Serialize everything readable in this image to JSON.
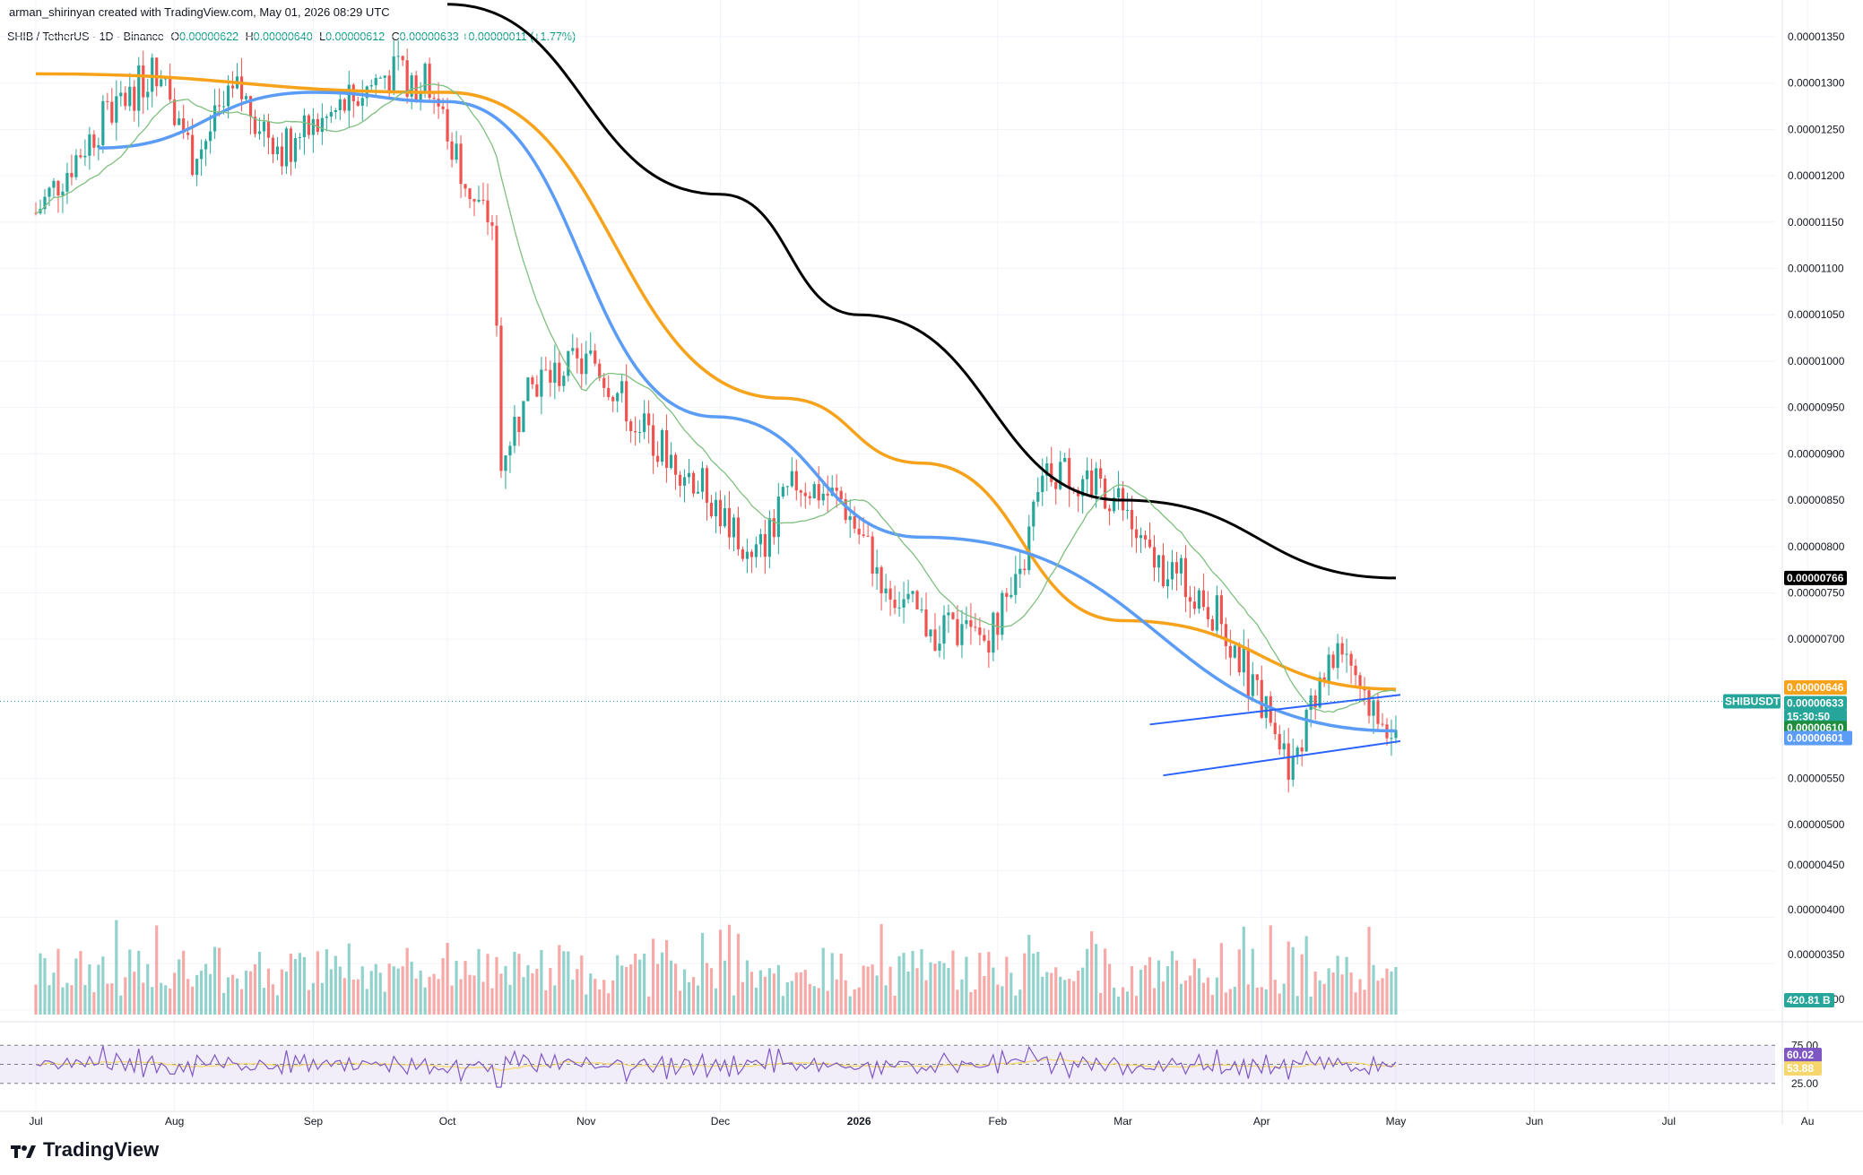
{
  "header": "arman_shirinyan created with TradingView.com, May 01, 2026 08:29 UTC",
  "legend": {
    "symbol": "SHIB / TetherUS · 1D · Binance",
    "open_label": "O",
    "open_value": "0.00000622",
    "high_label": "H",
    "high_value": "0.00000640",
    "low_label": "L",
    "low_value": "0.00000612",
    "close_label": "C",
    "close_value": "0.00000633",
    "change": "+0.00000011 (+1.77%)"
  },
  "brand": "TradingView",
  "colors": {
    "up": "#26a69a",
    "down": "#ef5350",
    "ma_black": "#000000",
    "ma_orange": "#f7a21b",
    "ma_blue": "#5b9cf6",
    "ma_green": "#7fbf7f",
    "rsi_line": "#7e57c2",
    "rsi_ma": "#f5d76e",
    "channel": "#2962ff"
  },
  "chart_data": {
    "type": "candlestick",
    "title": "SHIB / TetherUS · 1D · Binance",
    "ylim": [
      4.985e-06,
      1.3589e-05
    ],
    "price_ticks": [
      "0.00001350",
      "0.00001300",
      "0.00001250",
      "0.00001200",
      "0.00001150",
      "0.00001100",
      "0.00001050",
      "0.00001000",
      "0.00000950",
      "0.00000900",
      "0.00000850",
      "0.00000800",
      "0.00000750",
      "0.00000700",
      "0.00000550",
      "0.00000500",
      "0.00000450",
      "0.00000400",
      "0.00000350",
      "0.00000300"
    ],
    "x_labels": [
      "Jul",
      "Aug",
      "Sep",
      "Oct",
      "Nov",
      "Dec",
      "2026",
      "Feb",
      "Mar",
      "Apr",
      "May",
      "Jun",
      "Jul",
      "Au"
    ],
    "current_close": 6.33e-06,
    "moving_averages": [
      {
        "color": "black",
        "anchors": [
          [
            1.385e-05,
            "2025-10-01"
          ],
          [
            1.18e-05,
            "2025-12-01"
          ],
          [
            1.05e-05,
            "2026-01-01"
          ],
          [
            8.5e-06,
            "2026-03-01"
          ],
          [
            7.66e-06,
            "2026-05-01"
          ]
        ]
      },
      {
        "color": "orange",
        "anchors": [
          [
            1.31e-05,
            "2025-07-01"
          ],
          [
            1.29e-05,
            "2025-10-01"
          ],
          [
            9.6e-06,
            "2025-12-15"
          ],
          [
            8.9e-06,
            "2026-01-15"
          ],
          [
            7.2e-06,
            "2026-03-01"
          ],
          [
            6.46e-06,
            "2026-05-01"
          ]
        ]
      },
      {
        "color": "blue",
        "anchors": [
          [
            1.23e-05,
            "2025-07-15"
          ],
          [
            1.29e-05,
            "2025-09-01"
          ],
          [
            1.28e-05,
            "2025-10-01"
          ],
          [
            9.4e-06,
            "2025-11-30"
          ],
          [
            8.1e-06,
            "2026-01-15"
          ],
          [
            6.01e-06,
            "2026-05-01"
          ]
        ]
      }
    ],
    "channel": {
      "upper": [
        [
          "2026-03-07",
          6.08e-06
        ],
        [
          "2026-05-02",
          6.4e-06
        ]
      ],
      "lower": [
        [
          "2026-03-10",
          5.53e-06
        ],
        [
          "2026-05-02",
          5.9e-06
        ]
      ]
    },
    "price_tags": [
      {
        "value": "0.00000766",
        "bg": "#000000"
      },
      {
        "value": "0.00000646",
        "bg": "#f7a21b"
      },
      {
        "label": "SHIBUSDT",
        "value": "0.00000633",
        "bg": "#26a69a"
      },
      {
        "value": "15:30:50",
        "bg": "#26a69a"
      },
      {
        "value": "0.00000610",
        "bg": "#1e8e3e"
      },
      {
        "value": "0.00000601",
        "bg": "#5b9cf6"
      }
    ],
    "volume": {
      "last_label": "420.81 B"
    },
    "rsi": {
      "ticks": [
        "75.00",
        "25.00"
      ],
      "value": "60.02",
      "ma_value": "53.88"
    }
  }
}
